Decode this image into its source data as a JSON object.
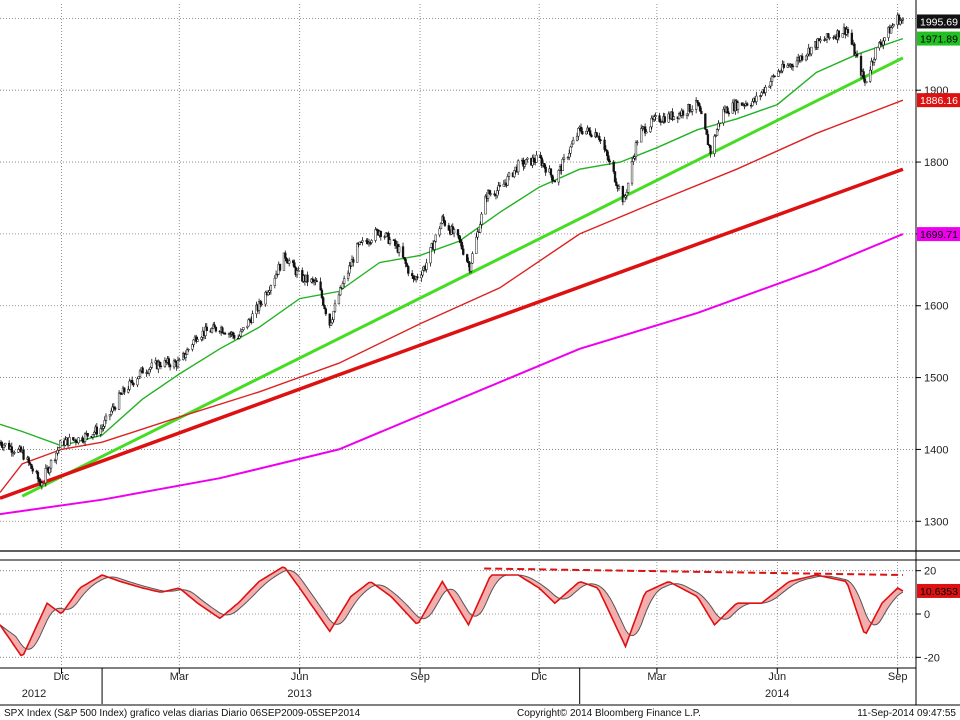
{
  "chart_data": [
    {
      "type": "candlestick",
      "panel": "price",
      "y_range": [
        1260,
        2020
      ],
      "y_ticks": [
        1300,
        1400,
        1500,
        1600,
        1700,
        1800,
        1900
      ],
      "grid": true,
      "price_anchors": [
        [
          "2012-10-15",
          1410
        ],
        [
          "2012-11-01",
          1395
        ],
        [
          "2012-11-15",
          1353
        ],
        [
          "2012-12-01",
          1410
        ],
        [
          "2012-12-15",
          1415
        ],
        [
          "2013-01-01",
          1430
        ],
        [
          "2013-01-15",
          1475
        ],
        [
          "2013-02-01",
          1510
        ],
        [
          "2013-02-15",
          1520
        ],
        [
          "2013-03-01",
          1520
        ],
        [
          "2013-03-15",
          1560
        ],
        [
          "2013-04-01",
          1570
        ],
        [
          "2013-04-15",
          1555
        ],
        [
          "2013-05-01",
          1600
        ],
        [
          "2013-05-21",
          1670
        ],
        [
          "2013-06-01",
          1640
        ],
        [
          "2013-06-15",
          1630
        ],
        [
          "2013-06-24",
          1575
        ],
        [
          "2013-07-01",
          1615
        ],
        [
          "2013-07-15",
          1680
        ],
        [
          "2013-08-01",
          1705
        ],
        [
          "2013-08-15",
          1680
        ],
        [
          "2013-08-27",
          1635
        ],
        [
          "2013-09-05",
          1655
        ],
        [
          "2013-09-18",
          1720
        ],
        [
          "2013-10-01",
          1690
        ],
        [
          "2013-10-09",
          1655
        ],
        [
          "2013-10-22",
          1755
        ],
        [
          "2013-11-01",
          1762
        ],
        [
          "2013-11-15",
          1795
        ],
        [
          "2013-12-01",
          1805
        ],
        [
          "2013-12-13",
          1775
        ],
        [
          "2014-01-01",
          1845
        ],
        [
          "2014-01-15",
          1840
        ],
        [
          "2014-02-04",
          1745
        ],
        [
          "2014-02-15",
          1840
        ],
        [
          "2014-03-01",
          1860
        ],
        [
          "2014-03-15",
          1865
        ],
        [
          "2014-04-01",
          1880
        ],
        [
          "2014-04-11",
          1815
        ],
        [
          "2014-04-20",
          1870
        ],
        [
          "2014-05-01",
          1880
        ],
        [
          "2014-05-15",
          1885
        ],
        [
          "2014-06-01",
          1925
        ],
        [
          "2014-06-15",
          1940
        ],
        [
          "2014-07-01",
          1965
        ],
        [
          "2014-07-24",
          1985
        ],
        [
          "2014-08-07",
          1910
        ],
        [
          "2014-08-15",
          1955
        ],
        [
          "2014-09-01",
          2000
        ],
        [
          "2014-09-05",
          1995
        ]
      ],
      "series": [
        {
          "name": "",
          "color": "#111111",
          "points": []
        },
        {
          "name": "",
          "color": "#22b222",
          "kind": "moving-average",
          "points": [
            [
              "2012-10-15",
              1435
            ],
            [
              "2012-11-01",
              1425
            ],
            [
              "2012-12-01",
              1405
            ],
            [
              "2013-01-01",
              1420
            ],
            [
              "2013-02-01",
              1470
            ],
            [
              "2013-03-01",
              1505
            ],
            [
              "2013-04-01",
              1540
            ],
            [
              "2013-05-01",
              1570
            ],
            [
              "2013-06-01",
              1610
            ],
            [
              "2013-07-01",
              1620
            ],
            [
              "2013-08-01",
              1660
            ],
            [
              "2013-09-01",
              1670
            ],
            [
              "2013-10-01",
              1690
            ],
            [
              "2013-11-01",
              1730
            ],
            [
              "2013-12-01",
              1765
            ],
            [
              "2014-01-01",
              1790
            ],
            [
              "2014-02-01",
              1800
            ],
            [
              "2014-03-01",
              1820
            ],
            [
              "2014-04-01",
              1845
            ],
            [
              "2014-05-01",
              1860
            ],
            [
              "2014-06-01",
              1880
            ],
            [
              "2014-07-01",
              1925
            ],
            [
              "2014-08-01",
              1950
            ],
            [
              "2014-09-05",
              1971.89
            ]
          ]
        },
        {
          "name": "",
          "color": "#dd2222",
          "kind": "moving-average",
          "points": [
            [
              "2012-10-15",
              1340
            ],
            [
              "2012-11-01",
              1380
            ],
            [
              "2012-12-01",
              1400
            ],
            [
              "2013-01-01",
              1410
            ],
            [
              "2013-03-01",
              1445
            ],
            [
              "2013-05-01",
              1480
            ],
            [
              "2013-07-01",
              1520
            ],
            [
              "2013-09-01",
              1575
            ],
            [
              "2013-11-01",
              1625
            ],
            [
              "2014-01-01",
              1700
            ],
            [
              "2014-03-01",
              1745
            ],
            [
              "2014-05-01",
              1790
            ],
            [
              "2014-07-01",
              1840
            ],
            [
              "2014-09-05",
              1886.16
            ]
          ]
        },
        {
          "name": "",
          "color": "#ee00ee",
          "kind": "moving-average",
          "points": [
            [
              "2012-10-15",
              1310
            ],
            [
              "2013-01-01",
              1330
            ],
            [
              "2013-04-01",
              1360
            ],
            [
              "2013-07-01",
              1400
            ],
            [
              "2013-10-01",
              1470
            ],
            [
              "2014-01-01",
              1540
            ],
            [
              "2014-04-01",
              1590
            ],
            [
              "2014-07-01",
              1650
            ],
            [
              "2014-09-05",
              1699.71
            ]
          ]
        }
      ],
      "trendlines": [
        {
          "color": "#44dd22",
          "from": [
            "2012-11-01",
            1335
          ],
          "to": [
            "2014-09-05",
            1945
          ]
        },
        {
          "color": "#dd1111",
          "from": [
            "2012-10-15",
            1332
          ],
          "to": [
            "2014-09-05",
            1790
          ]
        }
      ],
      "price_labels": [
        {
          "value": "1995.69",
          "y": 1995.69,
          "bg": "#111111",
          "fg": "#ffffff"
        },
        {
          "value": "1971.89",
          "y": 1971.89,
          "bg": "#22c022",
          "fg": "#000000"
        },
        {
          "value": "1886.16",
          "y": 1886.16,
          "bg": "#dd1111",
          "fg": "#ffffff"
        },
        {
          "value": "1699.71",
          "y": 1699.71,
          "bg": "#ee00ee",
          "fg": "#000000"
        }
      ]
    },
    {
      "type": "line",
      "panel": "oscillator",
      "y_range": [
        -24,
        24
      ],
      "y_ticks": [
        20,
        0,
        -20
      ],
      "series": [
        {
          "name": "",
          "color": "#dd1111",
          "points": [
            [
              "2012-10-15",
              -5
            ],
            [
              "2012-11-01",
              -20
            ],
            [
              "2012-11-20",
              5
            ],
            [
              "2012-12-01",
              0
            ],
            [
              "2012-12-15",
              12
            ],
            [
              "2013-01-01",
              18
            ],
            [
              "2013-01-15",
              15
            ],
            [
              "2013-02-01",
              12
            ],
            [
              "2013-02-15",
              10
            ],
            [
              "2013-03-01",
              12
            ],
            [
              "2013-03-15",
              5
            ],
            [
              "2013-04-01",
              -2
            ],
            [
              "2013-04-15",
              5
            ],
            [
              "2013-05-01",
              15
            ],
            [
              "2013-05-20",
              22
            ],
            [
              "2013-06-01",
              12
            ],
            [
              "2013-06-24",
              -8
            ],
            [
              "2013-07-10",
              8
            ],
            [
              "2013-07-25",
              15
            ],
            [
              "2013-08-10",
              8
            ],
            [
              "2013-08-30",
              -5
            ],
            [
              "2013-09-18",
              15
            ],
            [
              "2013-10-08",
              -5
            ],
            [
              "2013-10-25",
              18
            ],
            [
              "2013-11-15",
              18
            ],
            [
              "2013-12-01",
              12
            ],
            [
              "2013-12-13",
              5
            ],
            [
              "2014-01-01",
              15
            ],
            [
              "2014-01-15",
              12
            ],
            [
              "2014-02-05",
              -15
            ],
            [
              "2014-02-20",
              10
            ],
            [
              "2014-03-10",
              15
            ],
            [
              "2014-04-01",
              8
            ],
            [
              "2014-04-14",
              -5
            ],
            [
              "2014-05-01",
              5
            ],
            [
              "2014-05-20",
              5
            ],
            [
              "2014-06-10",
              15
            ],
            [
              "2014-07-01",
              18
            ],
            [
              "2014-07-24",
              15
            ],
            [
              "2014-08-07",
              -10
            ],
            [
              "2014-08-20",
              5
            ],
            [
              "2014-09-01",
              12
            ],
            [
              "2014-09-05",
              10.6353
            ]
          ]
        },
        {
          "name": "",
          "color": "#555555",
          "kind": "signal",
          "lag": 1
        }
      ],
      "resistance": {
        "color": "#dd1111",
        "style": "dashed",
        "from": [
          "2013-10-20",
          21
        ],
        "to": [
          "2014-09-05",
          18
        ]
      },
      "price_label": {
        "value": "10.6353",
        "y": 10.6353,
        "bg": "#dd1111",
        "fg": "#000000"
      }
    }
  ],
  "x_axis": {
    "range": [
      "2012-10-15",
      "2014-09-15"
    ],
    "month_ticks": [
      {
        "date": "2012-12-01",
        "label": "Dic"
      },
      {
        "date": "2013-03-01",
        "label": "Mar"
      },
      {
        "date": "2013-06-01",
        "label": "Jun"
      },
      {
        "date": "2013-09-01",
        "label": "Sep"
      },
      {
        "date": "2013-12-01",
        "label": "Dic"
      },
      {
        "date": "2014-03-01",
        "label": "Mar"
      },
      {
        "date": "2014-06-01",
        "label": "Jun"
      },
      {
        "date": "2014-09-01",
        "label": "Sep"
      }
    ],
    "year_labels": [
      {
        "date": "2012-11-10",
        "label": "2012"
      },
      {
        "date": "2013-06-01",
        "label": "2013"
      },
      {
        "date": "2014-06-01",
        "label": "2014"
      }
    ]
  },
  "footer": {
    "left": "SPX Index (S&P 500 Index) grafico velas diarias  Diario 06SEP2009-05SEP2014",
    "center": "Copyright© 2014 Bloomberg Finance L.P.",
    "right": "11-Sep-2014 09:47:55"
  }
}
